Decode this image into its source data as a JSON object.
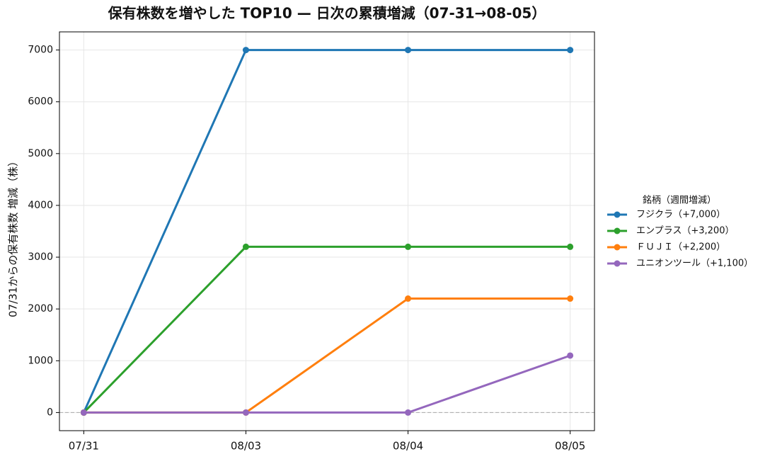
{
  "chart_data": {
    "type": "line",
    "title": "保有株数を増やした TOP10 — 日次の累積増減（07-31→08-05）",
    "y_label": "07/31からの保有株数 増減（株）",
    "legend_title": "銘柄（週間増減）",
    "legend": "outside right",
    "categories": [
      "07/31",
      "08/03",
      "08/04",
      "08/05"
    ],
    "series": [
      {
        "name": "フジクラ（+7,000）",
        "color": "#1f77b4",
        "values": [
          0,
          7000,
          7000,
          7000
        ]
      },
      {
        "name": "エンプラス（+3,200）",
        "color": "#2ca02c",
        "values": [
          0,
          3200,
          3200,
          3200
        ]
      },
      {
        "name": "ＦＵＪＩ（+2,200）",
        "color": "#ff7f0e",
        "values": [
          0,
          0,
          2200,
          2200
        ]
      },
      {
        "name": "ユニオンツール（+1,100）",
        "color": "#9467bd",
        "values": [
          0,
          0,
          0,
          1100
        ]
      }
    ],
    "ylim": [
      -350,
      7350
    ],
    "yticks": [
      0,
      1000,
      2000,
      3000,
      4000,
      5000,
      6000,
      7000
    ],
    "hline": 0,
    "grid": true
  }
}
